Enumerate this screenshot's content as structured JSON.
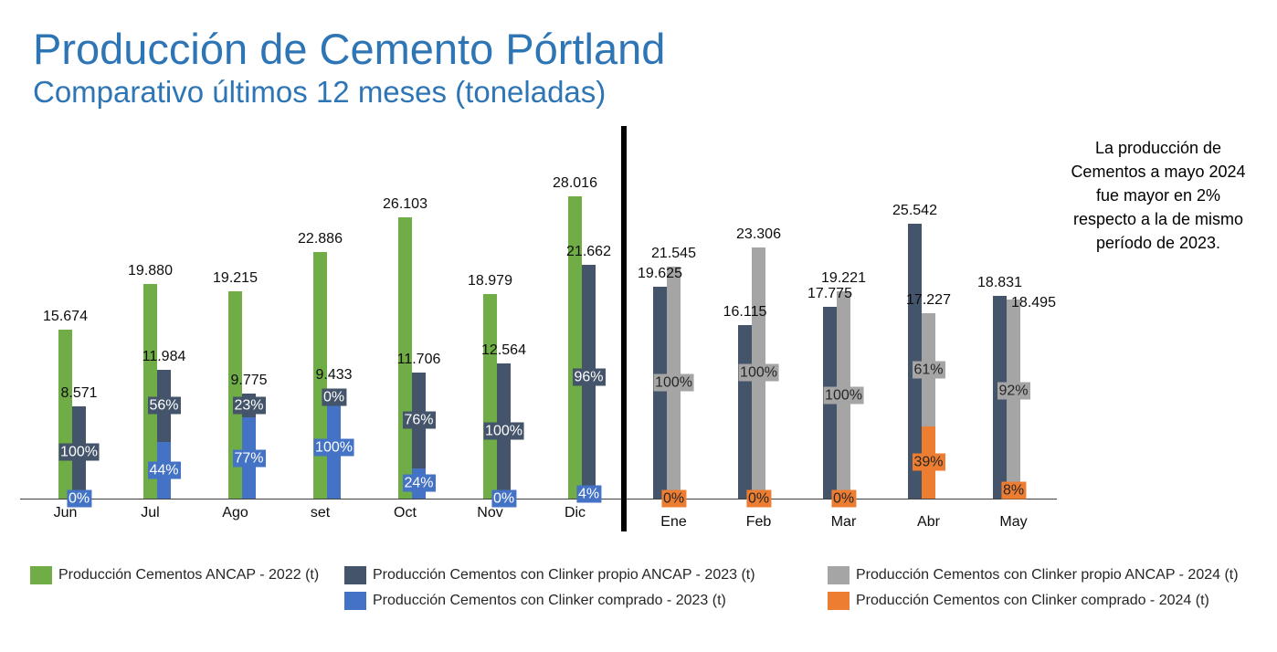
{
  "chart_data": {
    "type": "bar",
    "title": "Producción de Cemento Pórtland",
    "subtitle": "Comparativo últimos 12 meses (toneladas)",
    "grid": false,
    "legend_position": "bottom",
    "series": [
      {
        "name": "Producción Cementos ANCAP - 2022 (t)",
        "color": "#70AD47"
      },
      {
        "name": "Producción Cementos con Clinker propio ANCAP - 2023 (t)",
        "color": "#44546A",
        "label_text_color": "#FFFFFF"
      },
      {
        "name": "Producción Cementos con Clinker propio ANCAP - 2024 (t)",
        "color": "#A5A5A5",
        "label_text_color": "#262626"
      },
      {
        "name": "Producción Cementos con Clinker comprado - 2023 (t)",
        "color": "#4472C4",
        "label_text_color": "#FFFFFF"
      },
      {
        "name": "Producción Cementos con Clinker comprado - 2024 (t)",
        "color": "#ED7D31",
        "label_text_color": "#262626"
      }
    ],
    "panels": [
      {
        "categories": [
          "Jun",
          "Jul",
          "Ago",
          "set",
          "Oct",
          "Nov",
          "Dic"
        ],
        "bars": [
          {
            "series": 0,
            "values": [
              15674,
              19880,
              19215,
              22886,
              26103,
              18979,
              28016
            ],
            "labels": [
              "15.674",
              "19.880",
              "19.215",
              "22.886",
              "26.103",
              "18.979",
              "28.016"
            ]
          },
          {
            "totals": [
              8571,
              11984,
              9775,
              9433,
              11706,
              12564,
              21662
            ],
            "labels": [
              "8.571",
              "11.984",
              "9.775",
              "9.433",
              "11.706",
              "12.564",
              "21.662"
            ],
            "stack": [
              {
                "series": 3,
                "percent": [
                  0,
                  44,
                  77,
                  100,
                  24,
                  0,
                  4
                ],
                "labels": [
                  "0%",
                  "44%",
                  "77%",
                  "100%",
                  "24%",
                  "0%",
                  "4%"
                ]
              },
              {
                "series": 1,
                "percent": [
                  100,
                  56,
                  23,
                  0,
                  76,
                  100,
                  96
                ],
                "labels": [
                  "100%",
                  "56%",
                  "23%",
                  "0%",
                  "76%",
                  "100%",
                  "96%"
                ]
              }
            ]
          }
        ]
      },
      {
        "categories": [
          "Ene",
          "Feb",
          "Mar",
          "Abr",
          "May"
        ],
        "bars": [
          {
            "series": 1,
            "values": [
              19625,
              16115,
              17775,
              25542,
              18831
            ],
            "labels": [
              "19.625",
              "16.115",
              "17.775",
              "25.542",
              "18.831"
            ]
          },
          {
            "totals": [
              21545,
              23306,
              19221,
              17227,
              18495
            ],
            "labels": [
              "21.545",
              "23.306",
              "19.221",
              "17.227",
              "18.495"
            ],
            "stack": [
              {
                "series": 4,
                "percent": [
                  0,
                  0,
                  0,
                  39,
                  8
                ],
                "labels": [
                  "0%",
                  "0%",
                  "0%",
                  "39%",
                  "8%"
                ]
              },
              {
                "series": 2,
                "percent": [
                  100,
                  100,
                  100,
                  61,
                  92
                ],
                "labels": [
                  "100%",
                  "100%",
                  "100%",
                  "61%",
                  "92%"
                ]
              }
            ]
          }
        ]
      }
    ],
    "annotation": [
      "La producción de",
      "Cementos a mayo 2024",
      "fue mayor en 2%",
      "respecto a la de mismo",
      "período de 2023."
    ]
  }
}
